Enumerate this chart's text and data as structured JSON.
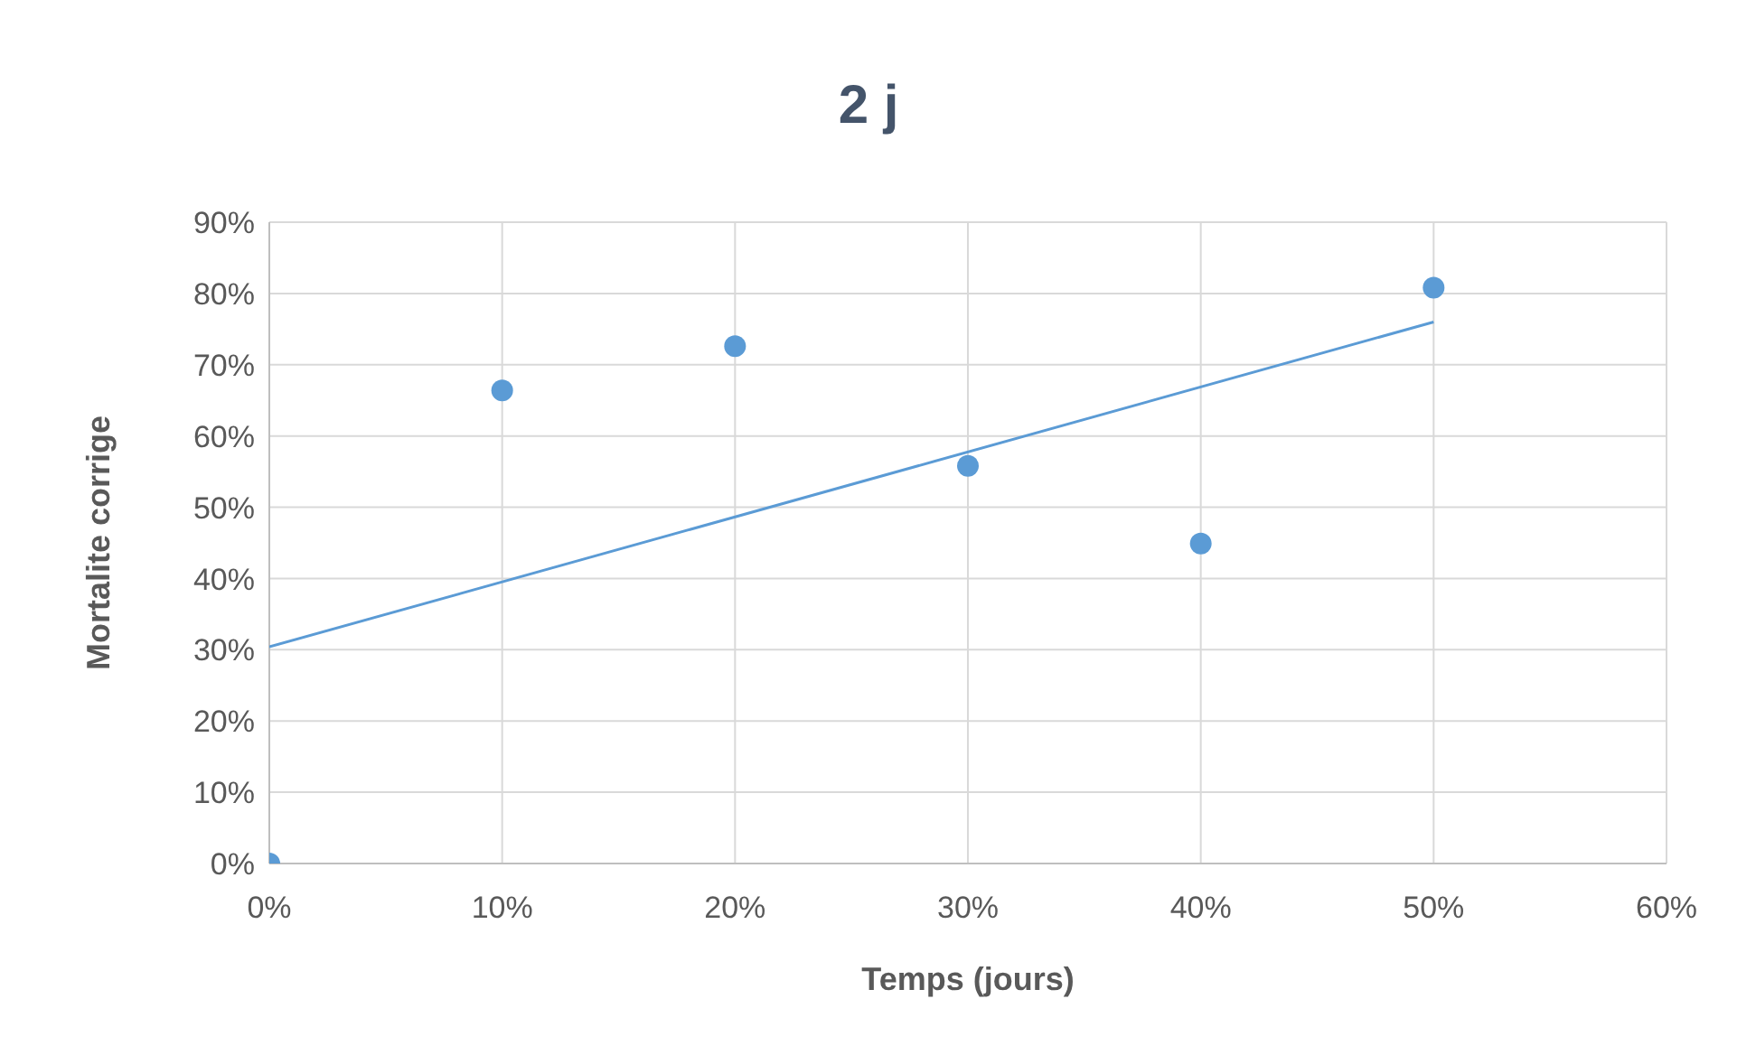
{
  "chart_data": {
    "type": "scatter",
    "title": "2 j",
    "xlabel": "Temps (jours)",
    "ylabel": "Mortalite  corrige",
    "xlim": [
      0,
      60
    ],
    "xticks": [
      {
        "value": 0,
        "label": "0%"
      },
      {
        "value": 10,
        "label": "10%"
      },
      {
        "value": 20,
        "label": "20%"
      },
      {
        "value": 30,
        "label": "30%"
      },
      {
        "value": 40,
        "label": "40%"
      },
      {
        "value": 50,
        "label": "50%"
      },
      {
        "value": 60,
        "label": "60%"
      }
    ],
    "ylim": [
      0,
      90
    ],
    "yticks": [
      {
        "value": 0,
        "label": "0%"
      },
      {
        "value": 10,
        "label": "10%"
      },
      {
        "value": 20,
        "label": "20%"
      },
      {
        "value": 30,
        "label": "30%"
      },
      {
        "value": 40,
        "label": "40%"
      },
      {
        "value": 50,
        "label": "50%"
      },
      {
        "value": 60,
        "label": "60%"
      },
      {
        "value": 70,
        "label": "70%"
      },
      {
        "value": 80,
        "label": "80%"
      },
      {
        "value": 90,
        "label": "90%"
      }
    ],
    "grid": true,
    "series": [
      {
        "marker": "circle",
        "color": "#5b9bd5",
        "x": [
          0,
          10,
          20,
          30,
          40,
          50
        ],
        "values": [
          0,
          66.4,
          72.6,
          55.8,
          44.9,
          80.8
        ]
      },
      {
        "type": "line",
        "color": "#5b9bd5",
        "x": [
          0,
          50
        ],
        "values": [
          30.4,
          76.0
        ],
        "line_style": "solid"
      }
    ]
  }
}
